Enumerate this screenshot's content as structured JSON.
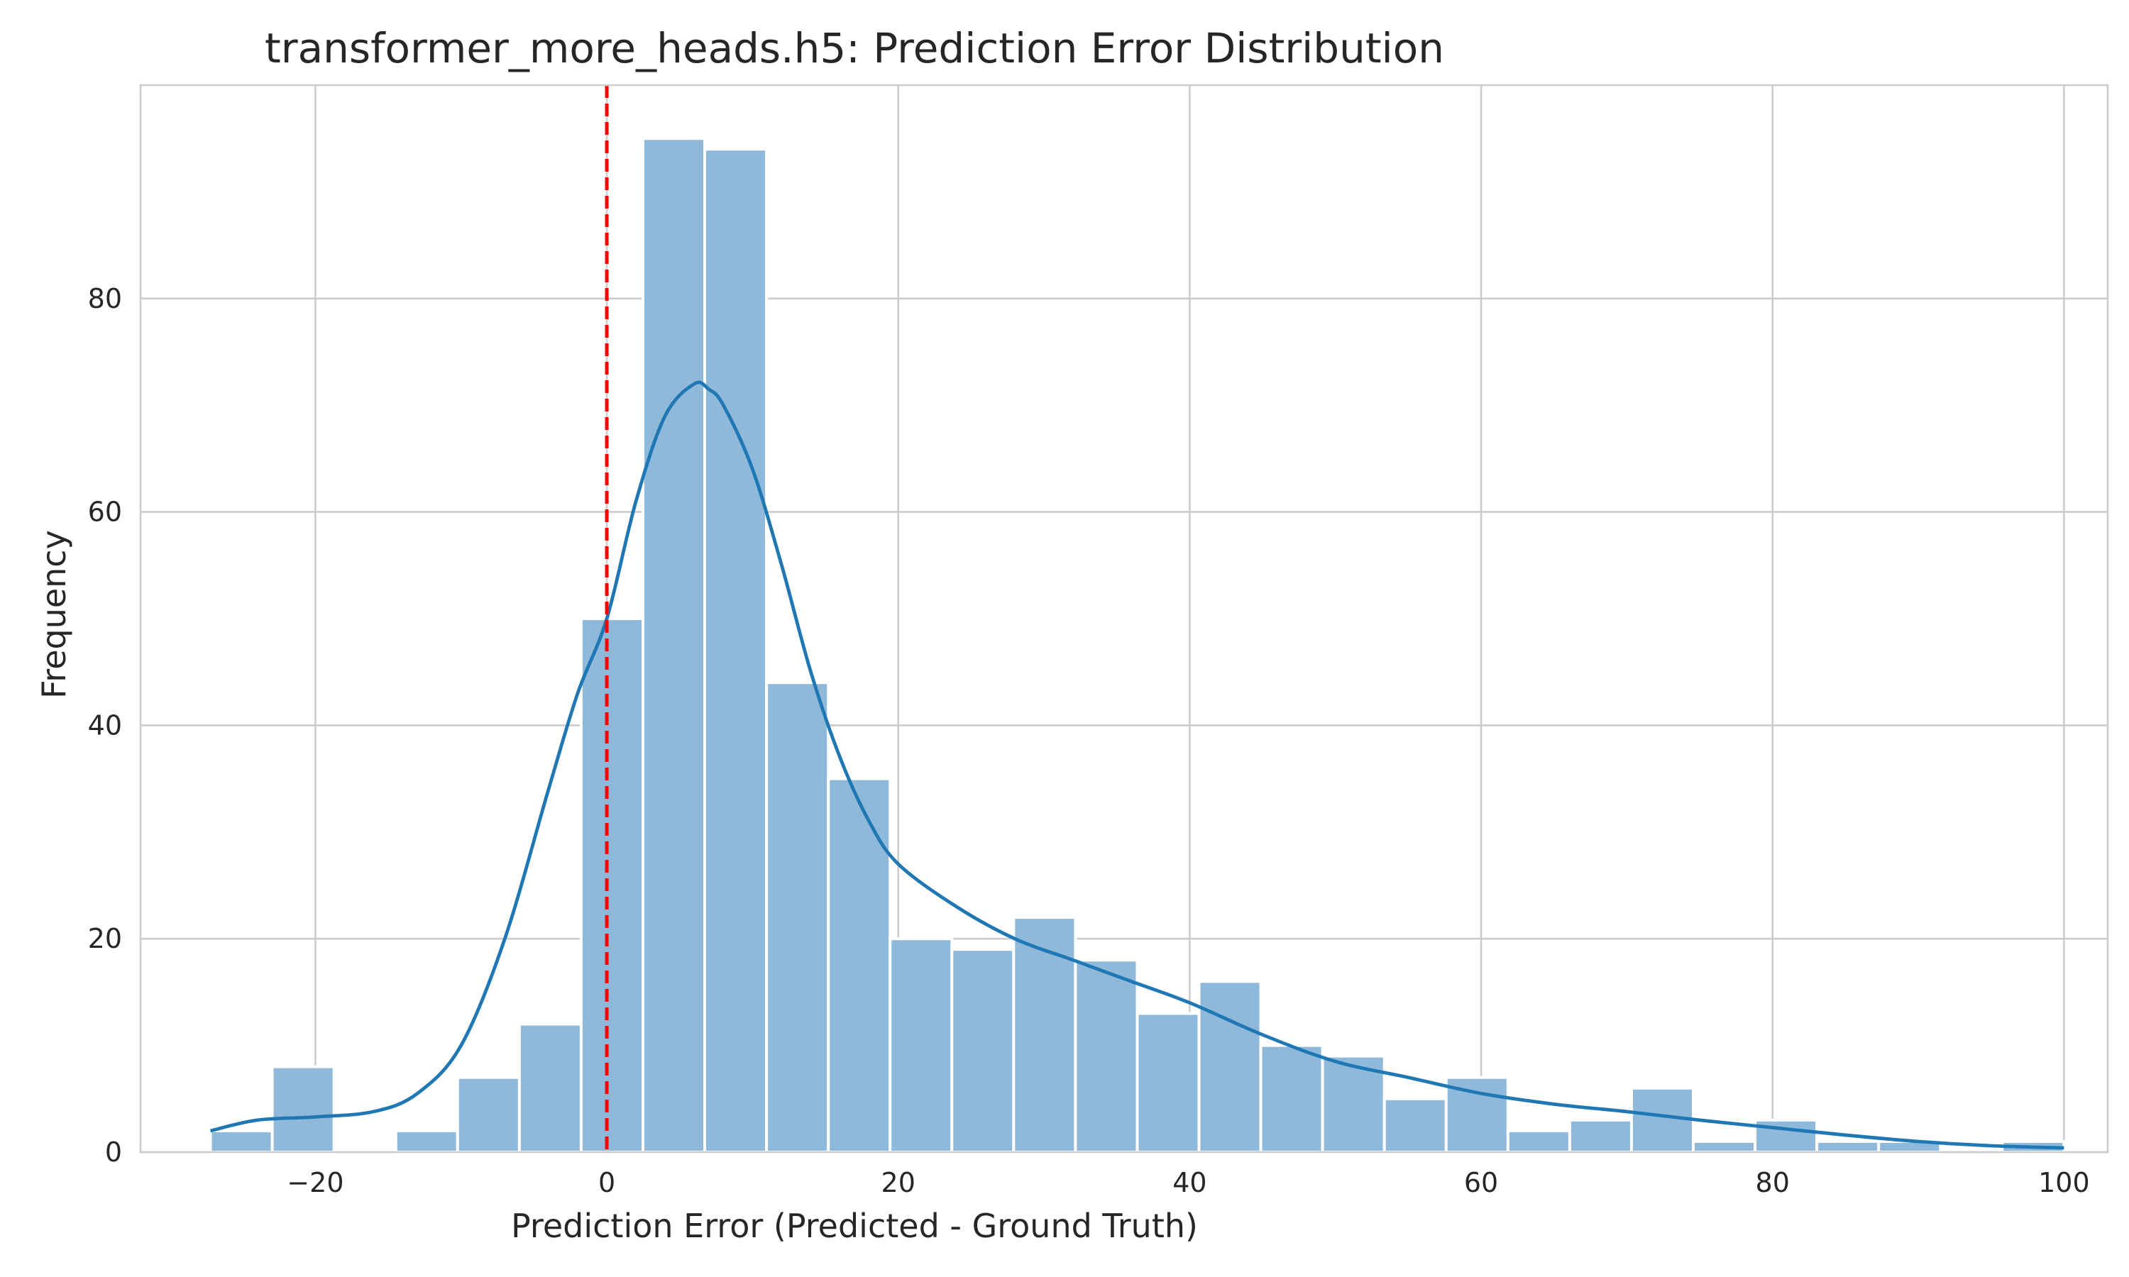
{
  "chart_data": {
    "type": "bar",
    "title": "transformer_more_heads.h5: Prediction Error Distribution",
    "xlabel": "Prediction Error (Predicted - Ground Truth)",
    "ylabel": "Frequency",
    "xlim": [
      -32,
      103
    ],
    "ylim": [
      0,
      100
    ],
    "xticks": [
      -20,
      0,
      20,
      40,
      60,
      80,
      100
    ],
    "xtick_labels": [
      "−20",
      "0",
      "20",
      "40",
      "60",
      "80",
      "100"
    ],
    "yticks": [
      0,
      20,
      40,
      60,
      80
    ],
    "ytick_labels": [
      "0",
      "20",
      "40",
      "60",
      "80"
    ],
    "grid": true,
    "bin_start": -27.2,
    "bin_width": 4.24,
    "values": [
      2,
      8,
      0,
      2,
      7,
      12,
      50,
      95,
      94,
      44,
      35,
      20,
      19,
      22,
      18,
      13,
      16,
      10,
      9,
      5,
      7,
      2,
      3,
      6,
      1,
      3,
      1,
      1,
      0,
      1
    ],
    "reference_line": {
      "x": 0,
      "color": "#ff0000",
      "style": "dashed"
    },
    "series": [
      {
        "type": "kde",
        "color": "#1f77b4",
        "x": [
          -27.2,
          -24,
          -20,
          -16,
          -13,
          -10,
          -7,
          -4,
          -2,
          0,
          2,
          4,
          6,
          7,
          8,
          10,
          12,
          14,
          16,
          18,
          20,
          24,
          28,
          32,
          36,
          40,
          45,
          50,
          55,
          60,
          65,
          70,
          75,
          80,
          85,
          90,
          95,
          100
        ],
        "y": [
          2,
          3,
          3.3,
          3.8,
          5.5,
          10,
          20,
          34,
          43,
          50,
          61,
          69,
          72,
          71.5,
          70,
          64,
          55,
          45,
          37,
          31,
          27,
          23,
          20,
          18,
          16,
          14,
          11,
          8.5,
          7,
          5.5,
          4.5,
          3.8,
          3,
          2.3,
          1.6,
          1,
          0.6,
          0.4
        ]
      }
    ],
    "bar_color": "#8fb9da"
  }
}
